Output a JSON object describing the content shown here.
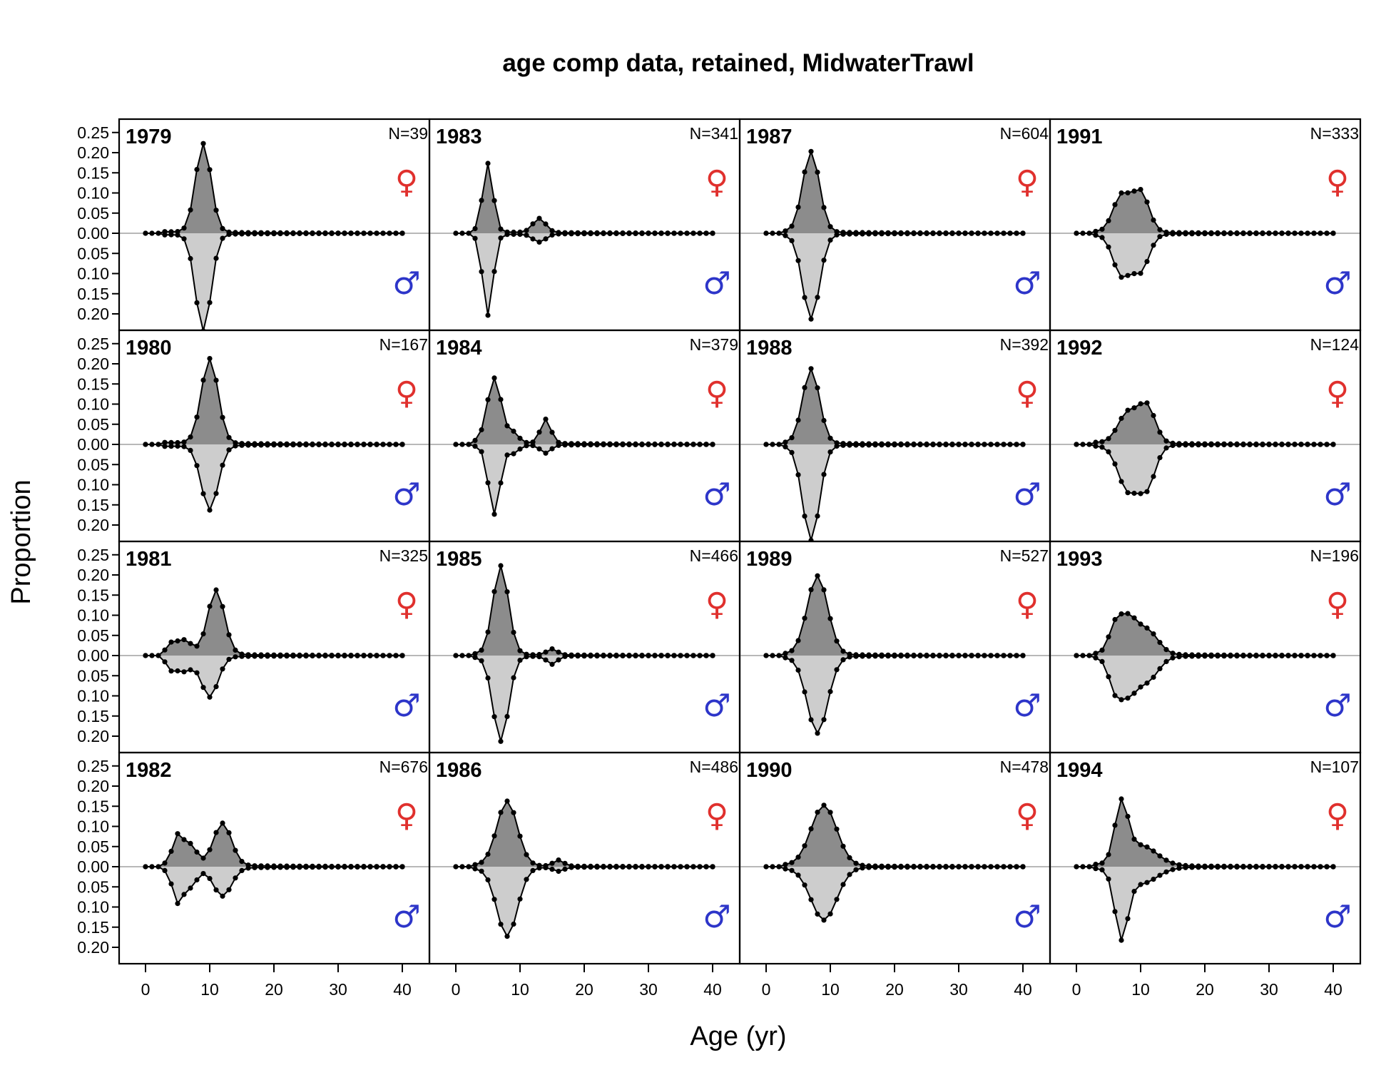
{
  "chart_data": {
    "type": "area",
    "title": "age comp data, retained, MidwaterTrawl",
    "xlabel": "Age (yr)",
    "ylabel": "Proportion",
    "x_range": [
      0,
      40
    ],
    "x_ticks": [
      "0",
      "10",
      "20",
      "30",
      "40"
    ],
    "y_range": [
      -0.24,
      0.25
    ],
    "y_ticks_female": [
      "0.25",
      "0.20",
      "0.15",
      "0.10",
      "0.05",
      "0.00"
    ],
    "y_ticks_male": [
      "0.05",
      "0.10",
      "0.15",
      "0.20"
    ],
    "female_symbol": "♀",
    "male_symbol": "♂",
    "colors": {
      "female_fill": "#8c8c8c",
      "male_fill": "#cdcdcd",
      "female_symbol": "#e0302d",
      "male_symbol": "#2d35c9",
      "zero_line": "#b8b8b8"
    },
    "layout": "4x4 panels filled column-wise; female plotted above zero, male mirrored below",
    "panels": [
      {
        "year": "1979",
        "n_label": "N=39",
        "peaks_f": [
          [
            9,
            0.22,
            1.2
          ]
        ],
        "peaks_m": [
          [
            9,
            0.24,
            1.2
          ]
        ],
        "tail_f": 0.004,
        "tail_m": 0.004
      },
      {
        "year": "1980",
        "n_label": "N=167",
        "peaks_f": [
          [
            10,
            0.21,
            1.3
          ]
        ],
        "peaks_m": [
          [
            10,
            0.16,
            1.3
          ]
        ],
        "tail_f": 0.005,
        "tail_m": 0.005
      },
      {
        "year": "1981",
        "n_label": "N=325",
        "peaks_f": [
          [
            11,
            0.16,
            1.3
          ],
          [
            6,
            0.035,
            1.2
          ],
          [
            4,
            0.02,
            0.7
          ]
        ],
        "peaks_m": [
          [
            10,
            0.1,
            1.3
          ],
          [
            6,
            0.035,
            1.2
          ],
          [
            4,
            0.025,
            0.7
          ]
        ],
        "tail_f": 0.005,
        "tail_m": 0.005
      },
      {
        "year": "1982",
        "n_label": "N=676",
        "peaks_f": [
          [
            5,
            0.07,
            0.8
          ],
          [
            7,
            0.05,
            1.0
          ],
          [
            12,
            0.105,
            1.4
          ]
        ],
        "peaks_m": [
          [
            5,
            0.08,
            0.8
          ],
          [
            7,
            0.045,
            1.0
          ],
          [
            12,
            0.07,
            1.4
          ]
        ],
        "tail_f": 0.006,
        "tail_m": 0.006
      },
      {
        "year": "1983",
        "n_label": "N=341",
        "peaks_f": [
          [
            5,
            0.17,
            0.8
          ],
          [
            13,
            0.035,
            1.0
          ]
        ],
        "peaks_m": [
          [
            5,
            0.2,
            0.8
          ],
          [
            13,
            0.02,
            1.0
          ]
        ],
        "tail_f": 0.004,
        "tail_m": 0.004
      },
      {
        "year": "1984",
        "n_label": "N=379",
        "peaks_f": [
          [
            6,
            0.16,
            1.1
          ],
          [
            14,
            0.06,
            0.8
          ],
          [
            9,
            0.025,
            0.8
          ]
        ],
        "peaks_m": [
          [
            6,
            0.17,
            0.9
          ],
          [
            14,
            0.02,
            0.8
          ],
          [
            9,
            0.02,
            0.8
          ]
        ],
        "tail_f": 0.006,
        "tail_m": 0.004
      },
      {
        "year": "1985",
        "n_label": "N=466",
        "peaks_f": [
          [
            7,
            0.22,
            1.2
          ],
          [
            15,
            0.015,
            0.8
          ]
        ],
        "peaks_m": [
          [
            7,
            0.21,
            1.2
          ],
          [
            15,
            0.02,
            0.8
          ]
        ],
        "tail_f": 0.004,
        "tail_m": 0.004
      },
      {
        "year": "1986",
        "n_label": "N=486",
        "peaks_f": [
          [
            8,
            0.16,
            1.6
          ],
          [
            16,
            0.015,
            0.8
          ]
        ],
        "peaks_m": [
          [
            8,
            0.17,
            1.6
          ],
          [
            16,
            0.01,
            0.8
          ]
        ],
        "tail_f": 0.004,
        "tail_m": 0.004
      },
      {
        "year": "1987",
        "n_label": "N=604",
        "peaks_f": [
          [
            7,
            0.2,
            1.3
          ]
        ],
        "peaks_m": [
          [
            7,
            0.21,
            1.3
          ]
        ],
        "tail_f": 0.004,
        "tail_m": 0.004
      },
      {
        "year": "1988",
        "n_label": "N=392",
        "peaks_f": [
          [
            7,
            0.185,
            1.3
          ]
        ],
        "peaks_m": [
          [
            7,
            0.235,
            1.3
          ]
        ],
        "tail_f": 0.004,
        "tail_m": 0.004
      },
      {
        "year": "1989",
        "n_label": "N=527",
        "peaks_f": [
          [
            8,
            0.195,
            1.6
          ]
        ],
        "peaks_m": [
          [
            8,
            0.19,
            1.6
          ]
        ],
        "tail_f": 0.004,
        "tail_m": 0.004
      },
      {
        "year": "1990",
        "n_label": "N=478",
        "peaks_f": [
          [
            9,
            0.15,
            2.0
          ]
        ],
        "peaks_m": [
          [
            9,
            0.13,
            2.0
          ]
        ],
        "tail_f": 0.004,
        "tail_m": 0.004
      },
      {
        "year": "1991",
        "n_label": "N=333",
        "peaks_f": [
          [
            7,
            0.09,
            1.3
          ],
          [
            10,
            0.1,
            1.3
          ]
        ],
        "peaks_m": [
          [
            7,
            0.1,
            1.3
          ],
          [
            10,
            0.09,
            1.3
          ]
        ],
        "tail_f": 0.004,
        "tail_m": 0.004
      },
      {
        "year": "1992",
        "n_label": "N=124",
        "peaks_f": [
          [
            8,
            0.075,
            1.5
          ],
          [
            11,
            0.09,
            1.3
          ]
        ],
        "peaks_m": [
          [
            8,
            0.11,
            1.5
          ],
          [
            11,
            0.1,
            1.3
          ]
        ],
        "tail_f": 0.005,
        "tail_m": 0.004
      },
      {
        "year": "1993",
        "n_label": "N=196",
        "peaks_f": [
          [
            6,
            0.06,
            1.0
          ],
          [
            8,
            0.08,
            1.3
          ],
          [
            11,
            0.06,
            1.7
          ]
        ],
        "peaks_m": [
          [
            6,
            0.07,
            1.0
          ],
          [
            8,
            0.08,
            1.3
          ],
          [
            11,
            0.06,
            1.7
          ]
        ],
        "tail_f": 0.005,
        "tail_m": 0.005
      },
      {
        "year": "1994",
        "n_label": "N=107",
        "peaks_f": [
          [
            7,
            0.14,
            1.0
          ],
          [
            10,
            0.05,
            2.5
          ]
        ],
        "peaks_m": [
          [
            7,
            0.16,
            1.0
          ],
          [
            10,
            0.04,
            2.5
          ]
        ],
        "tail_f": 0.005,
        "tail_m": 0.004
      }
    ]
  }
}
